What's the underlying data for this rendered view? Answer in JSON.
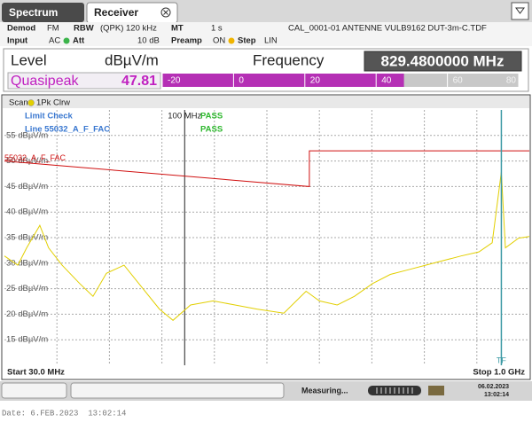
{
  "tabs": {
    "spectrum": "Spectrum",
    "receiver": "Receiver"
  },
  "info": {
    "demod_label": "Demod",
    "demod": "FM",
    "rbw_label": "RBW",
    "rbw": "(QPK) 120 kHz",
    "mt_label": "MT",
    "mt": "1 s",
    "transducer": "CAL_0001-01 ANTENNE VULB9162 DUT-3m-C.TDF",
    "input_label": "Input",
    "input": "AC",
    "att_label": "Att",
    "att": "10 dB",
    "preamp_label": "Preamp",
    "preamp": "ON",
    "step_label": "Step",
    "step": "LIN"
  },
  "readout": {
    "level": "Level",
    "unit": "dBµV/m",
    "frequency_label": "Frequency",
    "frequency": "829.4800000 MHz",
    "detector": "Quasipeak",
    "value": 47.81,
    "bar_lim": [
      -20,
      80
    ],
    "bar_ticks": [
      -20,
      0,
      20,
      40,
      60,
      80
    ]
  },
  "chart_data": {
    "type": "line",
    "scan": "Scan",
    "x_log": true,
    "xlim": [
      30,
      1000
    ],
    "ylim": [
      10,
      60
    ],
    "yticks": [
      {
        "value": 15,
        "label": "15 dBµV/m"
      },
      {
        "value": 20,
        "label": "20 dBµV/m"
      },
      {
        "value": 25,
        "label": "25 dBµV/m"
      },
      {
        "value": 30,
        "label": "30 dBµV/m"
      },
      {
        "value": 35,
        "label": "35 dBµV/m"
      },
      {
        "value": 40,
        "label": "40 dBµV/m"
      },
      {
        "value": 45,
        "label": "45 dBµV/m"
      },
      {
        "value": 50,
        "label": "50 dBµV/m"
      },
      {
        "value": 55,
        "label": "55 dBµV/m"
      }
    ],
    "grid": true,
    "series": [
      {
        "name": "1Pk Clrw",
        "color": "#e2cf00",
        "x": [
          30,
          32.8,
          34.8,
          38,
          40.3,
          44.1,
          49.6,
          54.2,
          59.3,
          66.7,
          75.1,
          84.5,
          92.5,
          104,
          121,
          140,
          162,
          194,
          225,
          246,
          277,
          311,
          351,
          395,
          445,
          500,
          563,
          634,
          714,
          780,
          829.48,
          852,
          931,
          1000
        ],
        "values": [
          31.4,
          29.6,
          33,
          37.4,
          33,
          29.6,
          26,
          23.5,
          28,
          29.6,
          25.3,
          21,
          18.8,
          21.8,
          22.6,
          21.8,
          21,
          20.2,
          24.5,
          22.6,
          21.8,
          23.5,
          26,
          27.8,
          28.7,
          29.6,
          30.5,
          31.4,
          32.2,
          34,
          47.81,
          33,
          34.9,
          35.2
        ]
      },
      {
        "name": "55032_A_F_FAC",
        "color": "#d01010",
        "x": [
          30,
          230,
          230,
          1000
        ],
        "values": [
          50,
          45,
          52,
          52
        ]
      }
    ],
    "limit_check": {
      "title": "Limit Check",
      "line": "Line 55032_A_F_FAC",
      "results": [
        "PASS",
        "PASS"
      ]
    },
    "marker_line": {
      "x": 100,
      "label": "100 MHz"
    },
    "cursor": {
      "x": 829.48,
      "label": "TF"
    },
    "start": "Start 30.0 MHz",
    "stop": "Stop 1.0 GHz"
  },
  "status": {
    "message": "Measuring...",
    "date": "06.02.2023",
    "time": "13:02:14"
  },
  "footer_date": "Date: 6.FEB.2023  13:02:14"
}
